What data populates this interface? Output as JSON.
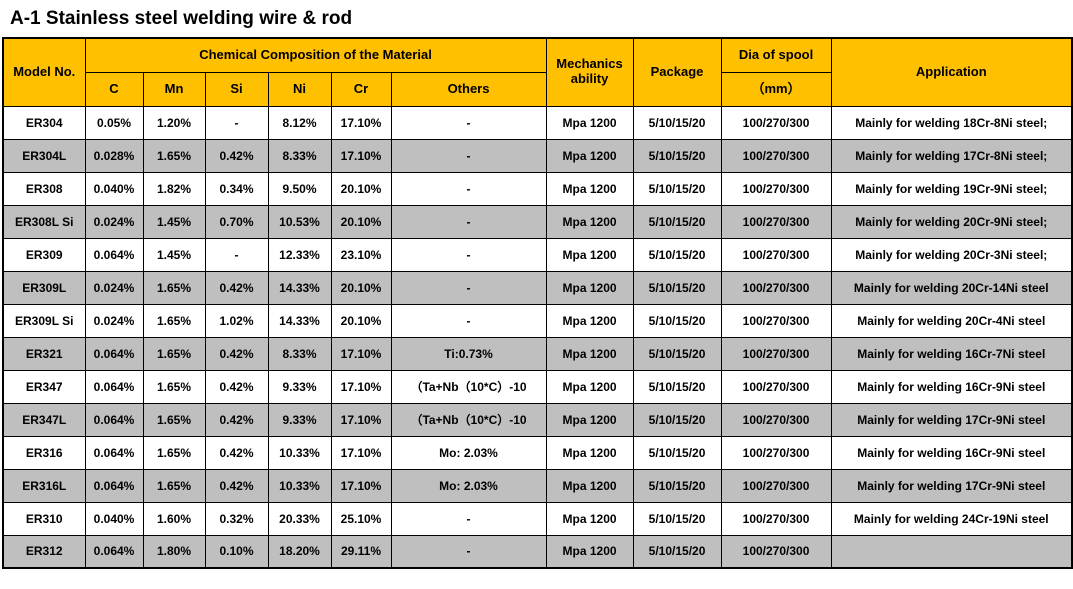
{
  "page": {
    "title": "A-1 Stainless steel welding wire & rod"
  },
  "colors": {
    "header_bg": "#FFC000",
    "alt_row_bg": "#BFBFBF",
    "border": "#000000"
  },
  "table": {
    "headers": {
      "model_no": "Model No.",
      "chem_group": "Chemical Composition of the Material",
      "chem_cols": [
        "C",
        "Mn",
        "Si",
        "Ni",
        "Cr",
        "Others"
      ],
      "mechanics": "Mechanics ability",
      "package": "Package",
      "dia_of_spool": "Dia of spool",
      "dia_unit": "（mm）",
      "application": "Application"
    },
    "rows": [
      {
        "model": "ER304",
        "c": "0.05%",
        "mn": "1.20%",
        "si": "-",
        "ni": "8.12%",
        "cr": "17.10%",
        "others": "-",
        "mechanics": "Mpa 1200",
        "package": "5/10/15/20",
        "dia": "100/270/300",
        "application": "Mainly for welding 18Cr-8Ni steel;"
      },
      {
        "model": "ER304L",
        "c": "0.028%",
        "mn": "1.65%",
        "si": "0.42%",
        "ni": "8.33%",
        "cr": "17.10%",
        "others": "-",
        "mechanics": "Mpa 1200",
        "package": "5/10/15/20",
        "dia": "100/270/300",
        "application": "Mainly for welding 17Cr-8Ni steel;"
      },
      {
        "model": "ER308",
        "c": "0.040%",
        "mn": "1.82%",
        "si": "0.34%",
        "ni": "9.50%",
        "cr": "20.10%",
        "others": "-",
        "mechanics": "Mpa 1200",
        "package": "5/10/15/20",
        "dia": "100/270/300",
        "application": "Mainly for welding 19Cr-9Ni steel;"
      },
      {
        "model": "ER308L Si",
        "c": "0.024%",
        "mn": "1.45%",
        "si": "0.70%",
        "ni": "10.53%",
        "cr": "20.10%",
        "others": "-",
        "mechanics": "Mpa 1200",
        "package": "5/10/15/20",
        "dia": "100/270/300",
        "application": "Mainly for welding 20Cr-9Ni steel;"
      },
      {
        "model": "ER309",
        "c": "0.064%",
        "mn": "1.45%",
        "si": "-",
        "ni": "12.33%",
        "cr": "23.10%",
        "others": "-",
        "mechanics": "Mpa 1200",
        "package": "5/10/15/20",
        "dia": "100/270/300",
        "application": "Mainly for welding 20Cr-3Ni steel;"
      },
      {
        "model": "ER309L",
        "c": "0.024%",
        "mn": "1.65%",
        "si": "0.42%",
        "ni": "14.33%",
        "cr": "20.10%",
        "others": "-",
        "mechanics": "Mpa 1200",
        "package": "5/10/15/20",
        "dia": "100/270/300",
        "application": "Mainly for welding 20Cr-14Ni steel"
      },
      {
        "model": "ER309L Si",
        "c": "0.024%",
        "mn": "1.65%",
        "si": "1.02%",
        "ni": "14.33%",
        "cr": "20.10%",
        "others": "-",
        "mechanics": "Mpa 1200",
        "package": "5/10/15/20",
        "dia": "100/270/300",
        "application": "Mainly for welding 20Cr-4Ni steel"
      },
      {
        "model": "ER321",
        "c": "0.064%",
        "mn": "1.65%",
        "si": "0.42%",
        "ni": "8.33%",
        "cr": "17.10%",
        "others": "Ti:0.73%",
        "mechanics": "Mpa 1200",
        "package": "5/10/15/20",
        "dia": "100/270/300",
        "application": "Mainly for welding 16Cr-7Ni steel"
      },
      {
        "model": "ER347",
        "c": "0.064%",
        "mn": "1.65%",
        "si": "0.42%",
        "ni": "9.33%",
        "cr": "17.10%",
        "others": "（Ta+Nb（10*C）-10",
        "mechanics": "Mpa 1200",
        "package": "5/10/15/20",
        "dia": "100/270/300",
        "application": "Mainly for welding 16Cr-9Ni steel"
      },
      {
        "model": "ER347L",
        "c": "0.064%",
        "mn": "1.65%",
        "si": "0.42%",
        "ni": "9.33%",
        "cr": "17.10%",
        "others": "（Ta+Nb（10*C）-10",
        "mechanics": "Mpa 1200",
        "package": "5/10/15/20",
        "dia": "100/270/300",
        "application": "Mainly for welding 17Cr-9Ni steel"
      },
      {
        "model": "ER316",
        "c": "0.064%",
        "mn": "1.65%",
        "si": "0.42%",
        "ni": "10.33%",
        "cr": "17.10%",
        "others": "Mo: 2.03%",
        "mechanics": "Mpa 1200",
        "package": "5/10/15/20",
        "dia": "100/270/300",
        "application": "Mainly for welding 16Cr-9Ni steel"
      },
      {
        "model": "ER316L",
        "c": "0.064%",
        "mn": "1.65%",
        "si": "0.42%",
        "ni": "10.33%",
        "cr": "17.10%",
        "others": "Mo: 2.03%",
        "mechanics": "Mpa 1200",
        "package": "5/10/15/20",
        "dia": "100/270/300",
        "application": "Mainly for welding 17Cr-9Ni steel"
      },
      {
        "model": "ER310",
        "c": "0.040%",
        "mn": "1.60%",
        "si": "0.32%",
        "ni": "20.33%",
        "cr": "25.10%",
        "others": "-",
        "mechanics": "Mpa 1200",
        "package": "5/10/15/20",
        "dia": "100/270/300",
        "application": "Mainly for welding 24Cr-19Ni steel"
      },
      {
        "model": "ER312",
        "c": "0.064%",
        "mn": "1.80%",
        "si": "0.10%",
        "ni": "18.20%",
        "cr": "29.11%",
        "others": "-",
        "mechanics": "Mpa 1200",
        "package": "5/10/15/20",
        "dia": "100/270/300",
        "application": ""
      }
    ]
  }
}
